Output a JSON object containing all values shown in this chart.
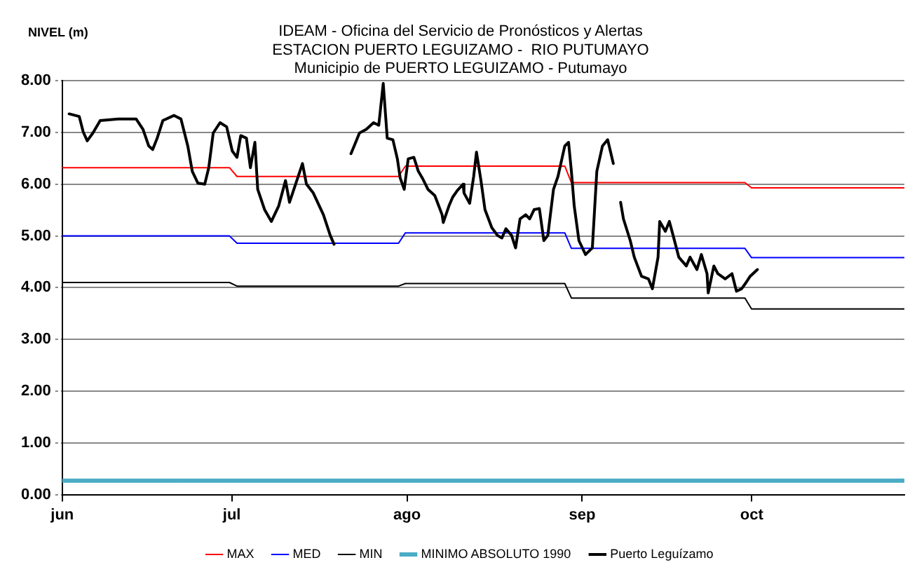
{
  "chart_data": {
    "type": "line",
    "title": "IDEAM - Oficina del Servicio de Pronósticos y Alertas\nESTACION PUERTO LEGUIZAMO -  RIO PUTUMAYO\nMunicipio de PUERTO LEGUIZAMO - Putumayo",
    "ylabel": "NIVEL (m)",
    "xlim": [
      "--06-01",
      "--10-28"
    ],
    "xticks": [
      {
        "value": "--06-01",
        "label": "jun"
      },
      {
        "value": "--07-01",
        "label": "jul"
      },
      {
        "value": "--08-01",
        "label": "ago"
      },
      {
        "value": "--09-01",
        "label": "sep"
      },
      {
        "value": "--10-01",
        "label": "oct"
      }
    ],
    "ylim": [
      0,
      8
    ],
    "yticks": [
      {
        "value": 0,
        "label": "0.00"
      },
      {
        "value": 1,
        "label": "1.00"
      },
      {
        "value": 2,
        "label": "2.00"
      },
      {
        "value": 3,
        "label": "3.00"
      },
      {
        "value": 4,
        "label": "4.00"
      },
      {
        "value": 5,
        "label": "5.00"
      },
      {
        "value": 6,
        "label": "6.00"
      },
      {
        "value": 7,
        "label": "7.00"
      },
      {
        "value": 8,
        "label": "8.00"
      }
    ],
    "grid": "y",
    "legend": "bottom",
    "marker": "none",
    "line_style": "solid",
    "series": [
      {
        "name": "MAX",
        "color": "#ff0000",
        "x": [
          "--06-01",
          "--06-30T14:00",
          "--07-01T22:00",
          "--07-30T12:00",
          "--07-31T17:00",
          "--08-28T22:00",
          "--08-30T02:00",
          "--09-29T19:00",
          "--09-30T23:00",
          "--10-28"
        ],
        "values": [
          6.32,
          6.32,
          6.15,
          6.15,
          6.35,
          6.35,
          6.03,
          6.03,
          5.93,
          5.93
        ]
      },
      {
        "name": "MED",
        "color": "#0000ff",
        "x": [
          "--06-01",
          "--06-30T14:00",
          "--07-01T22:00",
          "--07-30T12:00",
          "--07-31T17:00",
          "--08-28T22:00",
          "--08-30T02:00",
          "--09-29T19:00",
          "--09-30T23:00",
          "--10-28"
        ],
        "values": [
          5.0,
          5.0,
          4.86,
          4.86,
          5.06,
          5.06,
          4.76,
          4.76,
          4.58,
          4.58
        ]
      },
      {
        "name": "MIN",
        "color": "#000000",
        "x": [
          "--06-01",
          "--06-30T14:00",
          "--07-01T22:00",
          "--07-30T12:00",
          "--07-31T17:00",
          "--08-28T22:00",
          "--08-30T02:00",
          "--09-29T19:00",
          "--09-30T23:00",
          "--10-28"
        ],
        "values": [
          4.1,
          4.1,
          4.03,
          4.03,
          4.08,
          4.08,
          3.8,
          3.8,
          3.59,
          3.59
        ]
      },
      {
        "name": "MINIMO ABSOLUTO 1990",
        "color": "#4bacc6",
        "x": [
          "--06-01",
          "--10-28"
        ],
        "values": [
          0.27,
          0.27
        ]
      },
      {
        "name": "Puerto Leguízamo",
        "color": "#000000",
        "x": [
          "--06-02T05:00",
          "--06-04T00:00",
          "--06-04T17:00",
          "--06-05T10:00",
          "--06-06T10:00",
          "--06-07T17:00",
          "--06-10T22:00",
          "--06-14T02:00",
          "--06-15T07:00",
          "--06-16T07:00",
          "--06-17T00:00",
          "--06-17T19:00",
          "--06-18T19:00",
          "--06-20T19:00",
          "--06-22T00:00",
          "--06-23T05:00",
          "--06-24T00:00",
          "--06-25T00:00",
          "--06-26T05:00",
          "--06-26T22:00",
          "--06-27T17:00",
          "--06-28T22:00",
          "--06-30T02:00",
          "--07-01T02:00",
          "--07-01T22:00",
          "--07-02T14:00",
          "--07-03T14:00",
          "--07-04T07:00",
          "--07-05T02:00",
          "--07-05T14:00",
          "--07-06T19:00",
          "--07-08T00:00",
          "--07-09T07:00",
          "--07-10T12:00",
          "--07-11T05:00",
          "--07-12T12:00",
          "--07-13T12:00",
          "--07-14T05:00",
          "--07-15T10:00",
          "--07-17T05:00",
          "--07-18T10:00",
          "--07-19T02:00",
          "--07-20T14:00",
          "--07-22T02:00",
          "--07-22T22:00",
          "--07-23T14:00",
          "--07-24T19:00",
          "--07-26T02:00",
          "--07-27T00:00",
          "--07-27T19:00",
          "--07-28T12:00",
          "--07-29T12:00",
          "--07-30T07:00",
          "--07-30T19:00",
          "--07-31T12:00",
          "--08-01T05:00",
          "--08-02T05:00",
          "--08-03T00:00",
          "--08-03T17:00",
          "--08-04T17:00",
          "--08-05T22:00",
          "--08-07T05:00",
          "--08-07T10:00",
          "--08-08T10:00",
          "--08-09T02:00",
          "--08-09T22:00",
          "--08-10T22:00",
          "--08-11T02:00",
          "--08-12T02:00",
          "--08-12T19:00",
          "--08-13T07:00",
          "--08-14T02:00",
          "--08-14T19:00",
          "--08-16T00:00",
          "--08-17T00:00",
          "--08-17T19:00",
          "--08-18T12:00",
          "--08-19T12:00",
          "--08-20T05:00",
          "--08-21T00:00",
          "--08-22T00:00",
          "--08-22T17:00",
          "--08-23T12:00",
          "--08-24T10:00",
          "--08-25T05:00",
          "--08-25T22:00",
          "--08-26T22:00",
          "--08-27T17:00",
          "--08-28T22:00",
          "--08-29T14:00",
          "--08-30T02:00",
          "--08-30T14:00",
          "--08-31T10:00",
          "--09-01T14:00",
          "--09-02T19:00",
          "--09-03T14:00",
          "--09-04T14:00",
          "--09-05T12:00",
          "--09-06T12:00",
          "--09-07T05:00",
          "--09-07T19:00",
          "--09-08T07:00",
          "--09-09T12:00",
          "--09-10T05:00",
          "--09-11T12:00",
          "--09-12T17:00",
          "--09-13T10:00",
          "--09-14T10:00",
          "--09-14T17:00",
          "--09-15T17:00",
          "--09-16T10:00",
          "--09-17T02:00",
          "--09-18T02:00",
          "--09-19T10:00",
          "--09-20T02:00",
          "--09-21T07:00",
          "--09-22T02:00",
          "--09-23T02:00",
          "--09-23T07:00",
          "--09-24T07:00",
          "--09-25T00:00",
          "--09-26T07:00",
          "--09-27T12:00",
          "--09-28T07:00",
          "--09-29T05:00",
          "--09-30T00:00",
          "--09-30T17:00",
          "--10-02T00:00"
        ],
        "values": [
          7.36,
          7.31,
          7.01,
          6.84,
          6.99,
          7.23,
          7.26,
          7.26,
          7.06,
          6.74,
          6.67,
          6.89,
          7.23,
          7.33,
          7.26,
          6.74,
          6.25,
          6.02,
          6.0,
          6.32,
          6.99,
          7.19,
          7.11,
          6.64,
          6.52,
          6.94,
          6.89,
          6.32,
          6.81,
          5.9,
          5.51,
          5.28,
          5.58,
          6.07,
          5.65,
          6.07,
          6.4,
          6.0,
          5.83,
          5.41,
          5.01,
          4.84,
          null,
          6.59,
          6.81,
          6.99,
          7.06,
          7.19,
          7.14,
          7.95,
          6.89,
          6.86,
          6.49,
          6.12,
          5.9,
          6.49,
          6.52,
          6.25,
          6.12,
          5.9,
          5.78,
          5.41,
          5.26,
          5.58,
          5.75,
          5.88,
          6.0,
          5.83,
          5.63,
          6.15,
          6.62,
          6.07,
          5.51,
          5.16,
          5.01,
          4.96,
          5.14,
          5.01,
          4.77,
          5.33,
          5.41,
          5.33,
          5.51,
          5.53,
          4.91,
          5.01,
          5.9,
          6.15,
          6.74,
          6.81,
          6.25,
          5.58,
          4.91,
          4.64,
          4.77,
          6.25,
          6.74,
          6.86,
          6.4,
          null,
          5.65,
          5.33,
          4.91,
          4.59,
          4.22,
          4.17,
          3.98,
          4.59,
          5.28,
          5.09,
          5.28,
          5.01,
          4.59,
          4.42,
          4.59,
          4.35,
          4.64,
          4.27,
          3.9,
          4.42,
          4.27,
          4.17,
          4.27,
          3.93,
          3.98,
          4.1,
          4.22,
          4.35
        ]
      }
    ]
  }
}
